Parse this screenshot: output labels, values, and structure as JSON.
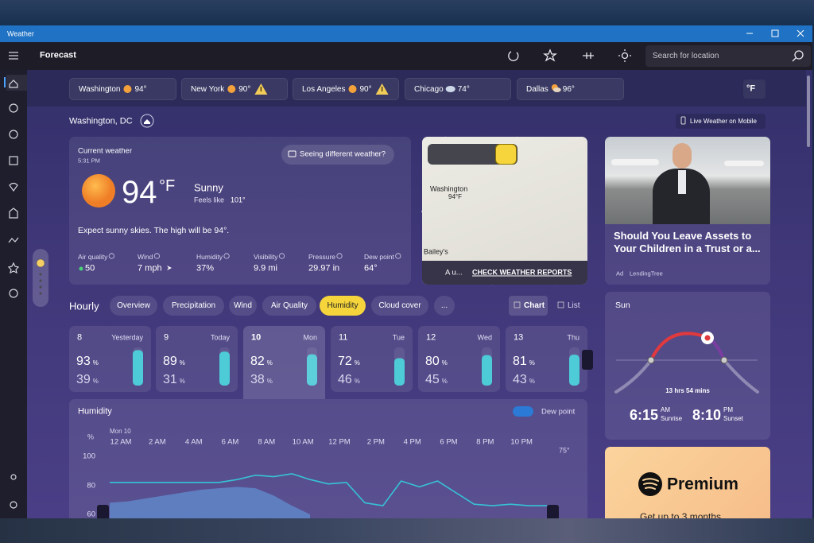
{
  "window": {
    "title": "Weather"
  },
  "toolbar": {
    "title": "Forecast",
    "search_placeholder": "Search for location"
  },
  "favorites": [
    {
      "city": "Washington",
      "temp": "94°"
    },
    {
      "city": "New York",
      "temp": "90°"
    },
    {
      "city": "Los Angeles",
      "temp": "90°"
    },
    {
      "city": "Chicago",
      "temp": "74°"
    },
    {
      "city": "Dallas",
      "temp": "96°"
    }
  ],
  "unit_button": "°F",
  "location": {
    "name": "Washington, DC",
    "mobile_button": "Live Weather on Mobile"
  },
  "current": {
    "label": "Current weather",
    "time": "5:31 PM",
    "temp": "94",
    "unit": "°F",
    "condition": "Sunny",
    "feels_label": "Feels like",
    "feels": "101°",
    "feedback_button": "Seeing different weather?",
    "summary": "Expect sunny skies. The high will be 94°.",
    "details": [
      {
        "label": "Air quality",
        "value": "50"
      },
      {
        "label": "Wind",
        "value": "7 mph"
      },
      {
        "label": "Humidity",
        "value": "37%"
      },
      {
        "label": "Visibility",
        "value": "9.9 mi"
      },
      {
        "label": "Pressure",
        "value": "29.97 in"
      },
      {
        "label": "Dew point",
        "value": "64°"
      }
    ]
  },
  "map": {
    "city": "Washington",
    "temp": "94°F",
    "place": "Bailey's",
    "alert": "A u...",
    "cta": "CHECK WEATHER REPORTS"
  },
  "ad": {
    "title": "Should You Leave Assets to Your Children in a Trust or a...",
    "tag": "Ad",
    "source": "LendingTree"
  },
  "hourly": {
    "title": "Hourly",
    "tabs": [
      "Overview",
      "Precipitation",
      "Wind",
      "Air Quality",
      "Humidity",
      "Cloud cover",
      "..."
    ],
    "views": [
      "Chart",
      "List"
    ],
    "unit": "%",
    "days": [
      {
        "num": "8",
        "label": "Yesterday",
        "high": 93,
        "low": 39
      },
      {
        "num": "9",
        "label": "Today",
        "high": 89,
        "low": 31
      },
      {
        "num": "10",
        "label": "Mon",
        "high": 82,
        "low": 38
      },
      {
        "num": "11",
        "label": "Tue",
        "high": 72,
        "low": 46
      },
      {
        "num": "12",
        "label": "Wed",
        "high": 80,
        "low": 45
      },
      {
        "num": "13",
        "label": "Thu",
        "high": 81,
        "low": 43
      }
    ]
  },
  "humidity_chart": {
    "type": "line",
    "title": "Humidity",
    "toggle_label": "Dew point",
    "date": "Mon 10",
    "y_unit": "%",
    "y2_label": "75°",
    "x": [
      0,
      1,
      2,
      3,
      4,
      5,
      6,
      7,
      8,
      9,
      10,
      11,
      12,
      13,
      14,
      15,
      16,
      17,
      18,
      19,
      20,
      21,
      22,
      23,
      24
    ],
    "xlim": [
      0,
      24
    ],
    "xticks": [
      {
        "value": 0,
        "label": "12 AM"
      },
      {
        "value": 2,
        "label": "2 AM"
      },
      {
        "value": 4,
        "label": "4 AM"
      },
      {
        "value": 6,
        "label": "6 AM"
      },
      {
        "value": 8,
        "label": "8 AM"
      },
      {
        "value": 10,
        "label": "10 AM"
      },
      {
        "value": 12,
        "label": "12 PM"
      },
      {
        "value": 14,
        "label": "2 PM"
      },
      {
        "value": 16,
        "label": "4 PM"
      },
      {
        "value": 18,
        "label": "6 PM"
      },
      {
        "value": 20,
        "label": "8 PM"
      },
      {
        "value": 22,
        "label": "10 PM"
      }
    ],
    "ylim": [
      60,
      100
    ],
    "yticks": [
      100,
      80,
      60
    ],
    "series": [
      {
        "color": "#36c3d6",
        "values": [
          82,
          82,
          82,
          82,
          82,
          82,
          82,
          84,
          87,
          86,
          88,
          84,
          81,
          82,
          68,
          66,
          83,
          79,
          83,
          75,
          67,
          66,
          67,
          66,
          66
        ]
      },
      {
        "color": "#5f86c9",
        "values": [
          68,
          69,
          71,
          73,
          75,
          77,
          78,
          79,
          78,
          73,
          66,
          60,
          null,
          null,
          null,
          null,
          null,
          null,
          null,
          null,
          null,
          null,
          null,
          null,
          null
        ]
      }
    ]
  },
  "sun": {
    "title": "Sun",
    "duration": "13 hrs 54 mins",
    "sunrise": "6:15",
    "sunrise_ampm": "AM",
    "sunrise_label": "Sunrise",
    "sunset": "8:10",
    "sunset_ampm": "PM",
    "sunset_label": "Sunset"
  },
  "promo": {
    "title": "Premium",
    "subtitle": "Get up to 3 months"
  }
}
